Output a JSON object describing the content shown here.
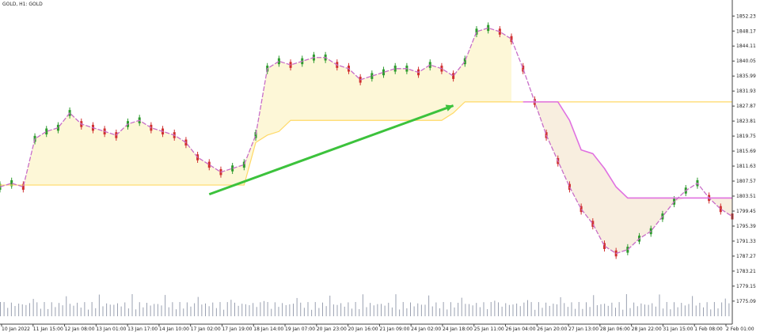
{
  "chart_data": {
    "type": "line",
    "title": "GOLD, H1:  GOLD",
    "ylim": [
      1771,
      1854
    ],
    "y_ticks": [
      "1852.23",
      "1848.17",
      "1844.11",
      "1840.05",
      "1835.99",
      "1831.93",
      "1827.87",
      "1823.81",
      "1819.75",
      "1815.69",
      "1811.63",
      "1807.57",
      "1803.51",
      "1799.45",
      "1795.39",
      "1791.33",
      "1787.27",
      "1783.21",
      "1779.15",
      "1775.09"
    ],
    "x_ticks": [
      "10 Jan 2022",
      "11 Jan 15:00",
      "12 Jan 08:00",
      "13 Jan 01:00",
      "13 Jan 17:00",
      "14 Jan 10:00",
      "17 Jan 02:00",
      "17 Jan 19:00",
      "18 Jan 14:00",
      "19 Jan 07:00",
      "20 Jan 23:00",
      "20 Jan 16:00",
      "21 Jan 09:00",
      "24 Jan 02:00",
      "24 Jan 18:00",
      "25 Jan 11:00",
      "26 Jan 04:00",
      "26 Jan 20:00",
      "27 Jan 13:00",
      "28 Jan 06:00",
      "28 Jan 22:00",
      "31 Jan 15:00",
      "1 Feb 08:00",
      "2 Feb 01:00"
    ],
    "grid": false,
    "series": [
      {
        "values": [
          1806,
          1807,
          1806,
          1819,
          1821,
          1822,
          1826,
          1823,
          1822,
          1821,
          1820,
          1823,
          1824,
          1822,
          1821,
          1820,
          1818,
          1814,
          1812,
          1810,
          1811,
          1812,
          1820,
          1838,
          1840,
          1839,
          1840,
          1841,
          1841,
          1839,
          1838,
          1835,
          1836,
          1837,
          1838,
          1838,
          1837,
          1839,
          1838,
          1836,
          1840,
          1848,
          1849,
          1848,
          1846,
          1838,
          1829,
          1820,
          1813,
          1806,
          1800,
          1796,
          1790,
          1788,
          1789,
          1792,
          1794,
          1798,
          1802,
          1805,
          1807,
          1803,
          1800,
          1798
        ]
      },
      {
        "values": [
          1806.5,
          1806.5,
          1806.5,
          1806.5,
          1806.5,
          1806.5,
          1806.5,
          1806.5,
          1806.5,
          1806.5,
          1806.5,
          1806.5,
          1806.5,
          1806.5,
          1806.5,
          1806.5,
          1806.5,
          1806.5,
          1806.5,
          1806.5,
          1806.5,
          1806.5,
          1818,
          1820,
          1821,
          1824,
          1824,
          1824,
          1824,
          1824,
          1824,
          1824,
          1824,
          1824,
          1824,
          1824,
          1824,
          1824,
          1824,
          1826,
          1829,
          1829,
          1829,
          1829,
          1829,
          1829,
          1829,
          1829,
          1829,
          1829,
          1829,
          1829,
          1829,
          1829,
          1829,
          1829,
          1829,
          1829,
          1829,
          1829,
          1829,
          1829,
          1829,
          1829
        ]
      },
      {
        "values": [
          null,
          null,
          null,
          null,
          null,
          null,
          null,
          null,
          null,
          null,
          null,
          null,
          null,
          null,
          null,
          null,
          null,
          null,
          null,
          null,
          null,
          null,
          null,
          null,
          null,
          null,
          null,
          null,
          null,
          null,
          null,
          null,
          null,
          null,
          null,
          null,
          null,
          null,
          null,
          null,
          null,
          null,
          null,
          null,
          null,
          1829,
          1829,
          1829,
          1829,
          1824,
          1816,
          1815,
          1811,
          1806,
          1803,
          1803,
          1803,
          1803,
          1803,
          1803,
          1803,
          1803,
          1803,
          1803
        ]
      }
    ],
    "annotations": [
      {
        "type": "arrow",
        "from": [
          18,
          1804
        ],
        "to": [
          39,
          1828
        ]
      }
    ],
    "colors": {
      "price_line": "#c86ec8",
      "yellow_line": "#ffd966",
      "magenta_line": "#e070e0",
      "arrow": "#3cc23c",
      "fill_bull": "#fdf7d7",
      "fill_bear": "#f8eedf",
      "volume": "#9aa0b0"
    }
  }
}
